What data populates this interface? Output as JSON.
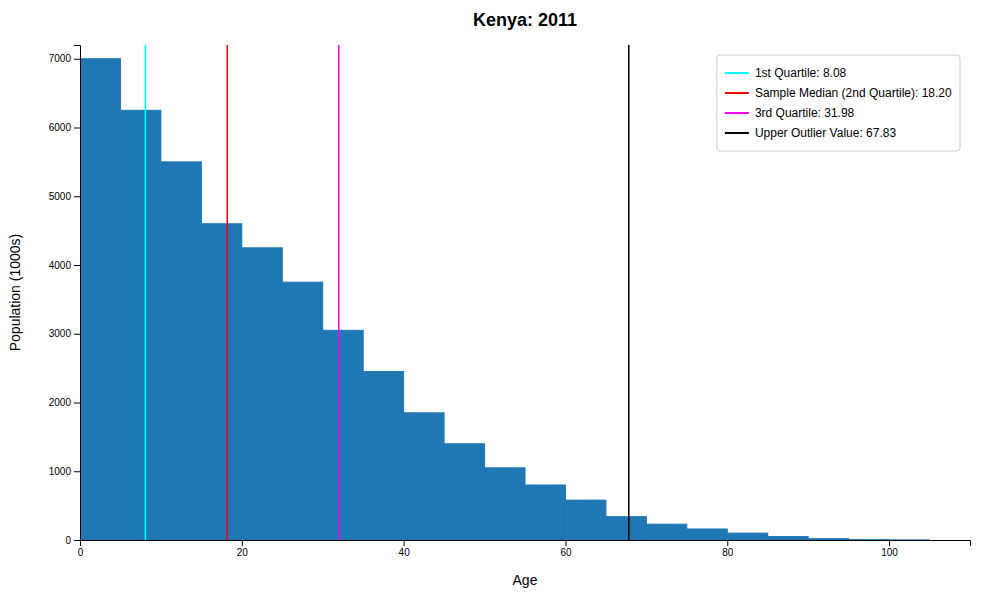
{
  "chart_data": {
    "type": "histogram",
    "title": "Kenya: 2011",
    "x_label": "Age",
    "y_label": "Population (1000s)",
    "bins": [
      0,
      5,
      10,
      15,
      20,
      25,
      30,
      35,
      40,
      45,
      50,
      55,
      60,
      65,
      70,
      75,
      80,
      85,
      90,
      95,
      100,
      105
    ],
    "values": [
      7000,
      6250,
      5500,
      4600,
      4250,
      3750,
      3050,
      2450,
      1850,
      1400,
      1050,
      800,
      580,
      340,
      230,
      160,
      100,
      50,
      20,
      5,
      2
    ],
    "color": "#1f77b4",
    "series": [
      {
        "name": "1st Quartile: 8.08",
        "type": "vline",
        "color": "cyan",
        "values": [
          8.08
        ]
      },
      {
        "name": "Sample Median (2nd Quartile): 18.20",
        "type": "vline",
        "color": "red",
        "values": [
          18.2
        ]
      },
      {
        "name": "3rd Quartile: 31.98",
        "type": "vline",
        "color": "magenta",
        "values": [
          31.98
        ]
      },
      {
        "name": "Upper Outlier Value: 67.83",
        "type": "vline",
        "color": "black",
        "values": [
          67.83
        ]
      }
    ],
    "xlim": [
      0,
      110
    ],
    "ylim": [
      0,
      7200
    ],
    "xticks": [
      0,
      20,
      40,
      60,
      80,
      100
    ],
    "yticks": [
      0,
      1000,
      2000,
      3000,
      4000,
      5000,
      6000,
      7000
    ],
    "grid": false,
    "legend": "upper right"
  }
}
